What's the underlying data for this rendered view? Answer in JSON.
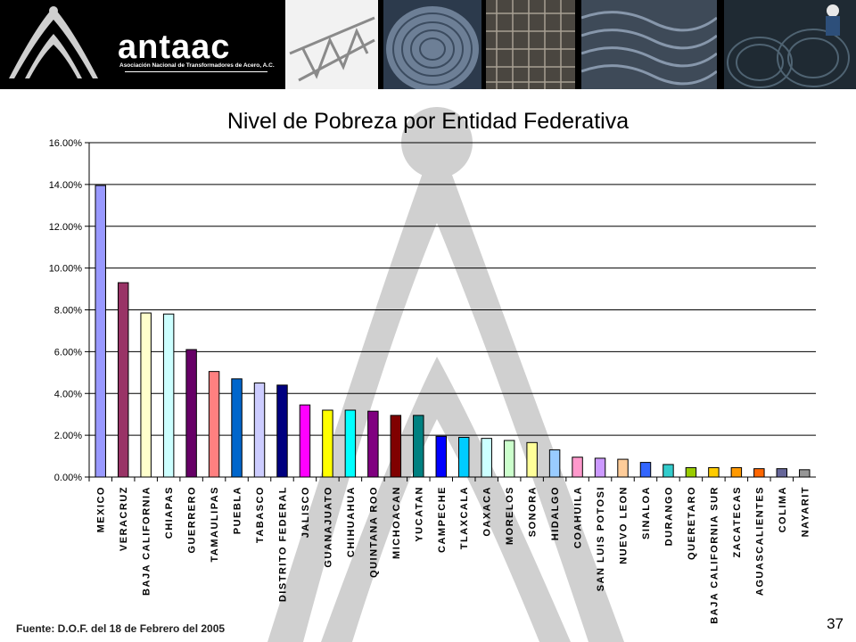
{
  "header": {
    "brand_name": "antaac",
    "brand_subtitle": "Asociación Nacional de Transformadores de Acero, A.C.",
    "photos": [
      "steel-truss-photo",
      "wire-coil-photo",
      "wire-mesh-rolls-photo",
      "rebar-bundles-photo",
      "worker-wire-coils-photo"
    ]
  },
  "footer": {
    "source": "Fuente:  D.O.F.  del 18 de Febrero del 2005",
    "page_number": "37"
  },
  "chart_data": {
    "type": "bar",
    "title": "Nivel de Pobreza por Entidad Federativa",
    "xlabel": "",
    "ylabel": "",
    "ylim": [
      0,
      16
    ],
    "y_ticks": [
      "0.00%",
      "2.00%",
      "4.00%",
      "6.00%",
      "8.00%",
      "10.00%",
      "12.00%",
      "14.00%",
      "16.00%"
    ],
    "grid": true,
    "legend": "none",
    "categories": [
      "MEXICO",
      "VERACRUZ",
      "BAJA CALIFORNIA",
      "CHIAPAS",
      "GUERRERO",
      "TAMAULIPAS",
      "PUEBLA",
      "TABASCO",
      "DISTRITO FEDERAL",
      "JALISCO",
      "GUANAJUATO",
      "CHIHUAHUA",
      "QUINTANA ROO",
      "MICHOACAN",
      "YUCATAN",
      "CAMPECHE",
      "TLAXCALA",
      "OAXACA",
      "MORELOS",
      "SONORA",
      "HIDALGO",
      "COAHUILA",
      "SAN LUIS POTOSI",
      "NUEVO LEON",
      "SINALOA",
      "DURANGO",
      "QUERETARO",
      "BAJA CALIFORNIA SUR",
      "ZACATECAS",
      "AGUASCALIENTES",
      "COLIMA",
      "NAYARIT"
    ],
    "values": [
      13.95,
      9.3,
      7.85,
      7.8,
      6.1,
      5.05,
      4.7,
      4.5,
      4.4,
      3.45,
      3.2,
      3.2,
      3.15,
      2.95,
      2.95,
      1.95,
      1.9,
      1.85,
      1.75,
      1.65,
      1.3,
      0.95,
      0.9,
      0.85,
      0.7,
      0.6,
      0.45,
      0.45,
      0.45,
      0.4,
      0.4,
      0.35
    ],
    "colors": [
      "#9999ff",
      "#993366",
      "#ffffcc",
      "#ccffff",
      "#660066",
      "#ff8080",
      "#0066cc",
      "#ccccff",
      "#000080",
      "#ff00ff",
      "#ffff00",
      "#00ffff",
      "#800080",
      "#800000",
      "#008080",
      "#0000ff",
      "#00ccff",
      "#ccffff",
      "#ccffcc",
      "#ffff99",
      "#99ccff",
      "#ff99cc",
      "#cc99ff",
      "#ffcc99",
      "#3366ff",
      "#33cccc",
      "#99cc00",
      "#ffcc00",
      "#ff9900",
      "#ff6600",
      "#666699",
      "#969696"
    ]
  }
}
